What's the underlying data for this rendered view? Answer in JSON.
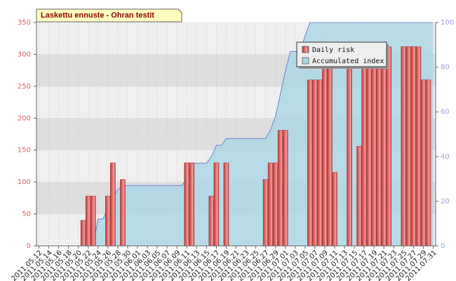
{
  "chart_data": {
    "type": "bar_area",
    "title": "Laskettu ennuste - Ohran testit",
    "categories": [
      "2011.05.12",
      null,
      "2011.05.14",
      null,
      "2011.05.16",
      null,
      "2011.05.18",
      null,
      "2011.05.20",
      null,
      "2011.05.22",
      null,
      "2011.05.24",
      null,
      "2011.05.26",
      null,
      "2011.05.28",
      null,
      "2011.05.30",
      null,
      "2011.06.01",
      null,
      "2011.06.03",
      null,
      "2011.06.05",
      null,
      "2011.06.07",
      null,
      "2011.06.09",
      null,
      "2011.06.11",
      null,
      "2011.06.13",
      null,
      "2011.06.15",
      null,
      "2011.06.17",
      null,
      "2011.06.19",
      null,
      "2011.06.21",
      null,
      "2011.06.23",
      null,
      "2011.06.25",
      null,
      "2011.06.27",
      null,
      "2011.06.29",
      null,
      "2011.07.01",
      null,
      "2011.07.03",
      null,
      "2011.07.05",
      null,
      "2011.07.07",
      null,
      "2011.07.09",
      null,
      "2011.07.11",
      null,
      "2011.07.13",
      null,
      "2011.07.15",
      null,
      "2011.07.17",
      null,
      "2011.07.19",
      null,
      "2011.07.21",
      null,
      "2011.07.23",
      null,
      "2011.07.25",
      null,
      "2011.07.27",
      null,
      "2011.07.29",
      null,
      "2011.07.31"
    ],
    "series": [
      {
        "name": "Daily risk",
        "color": "#e87272",
        "kind": "bar",
        "values": [
          0,
          0,
          0,
          0,
          0,
          0,
          0,
          0,
          0,
          40,
          78,
          78,
          0,
          0,
          78,
          130,
          0,
          104,
          0,
          0,
          0,
          0,
          0,
          0,
          0,
          0,
          0,
          0,
          0,
          0,
          130,
          130,
          0,
          0,
          0,
          78,
          130,
          0,
          130,
          0,
          0,
          0,
          0,
          0,
          0,
          0,
          104,
          130,
          130,
          181,
          181,
          0,
          0,
          0,
          0,
          260,
          260,
          260,
          285,
          285,
          115,
          0,
          0,
          285,
          0,
          156,
          312,
          312,
          312,
          312,
          312,
          312,
          0,
          0,
          312,
          312,
          312,
          312,
          260,
          260,
          0
        ]
      },
      {
        "name": "Accumulated index",
        "color": "#add8e6",
        "line_color": "#6b7fd0",
        "kind": "area",
        "axis": "y2",
        "values": [
          0,
          0,
          0,
          0,
          0,
          0,
          0,
          0,
          0,
          0,
          0,
          0,
          12,
          12,
          17,
          22,
          25,
          27,
          27,
          27,
          27,
          27,
          27,
          27,
          27,
          27,
          27,
          27,
          27,
          27,
          30,
          37,
          37,
          37,
          37,
          40,
          45,
          45,
          48,
          48,
          48,
          48,
          48,
          48,
          48,
          48,
          48,
          52,
          58,
          68,
          78,
          87,
          87,
          87,
          94,
          100,
          100,
          100,
          100,
          100,
          100,
          100,
          100,
          100,
          100,
          100,
          100,
          100,
          100,
          100,
          100,
          100,
          100,
          100,
          100,
          100,
          100,
          100,
          100,
          100,
          100
        ]
      }
    ],
    "ylim": [
      0,
      350
    ],
    "yticks": [
      0,
      50,
      100,
      150,
      200,
      250,
      300,
      350
    ],
    "y2lim": [
      0,
      100
    ],
    "y2ticks": [
      0,
      20,
      40,
      60,
      80,
      100
    ],
    "grid": true,
    "legend": "top-right"
  }
}
